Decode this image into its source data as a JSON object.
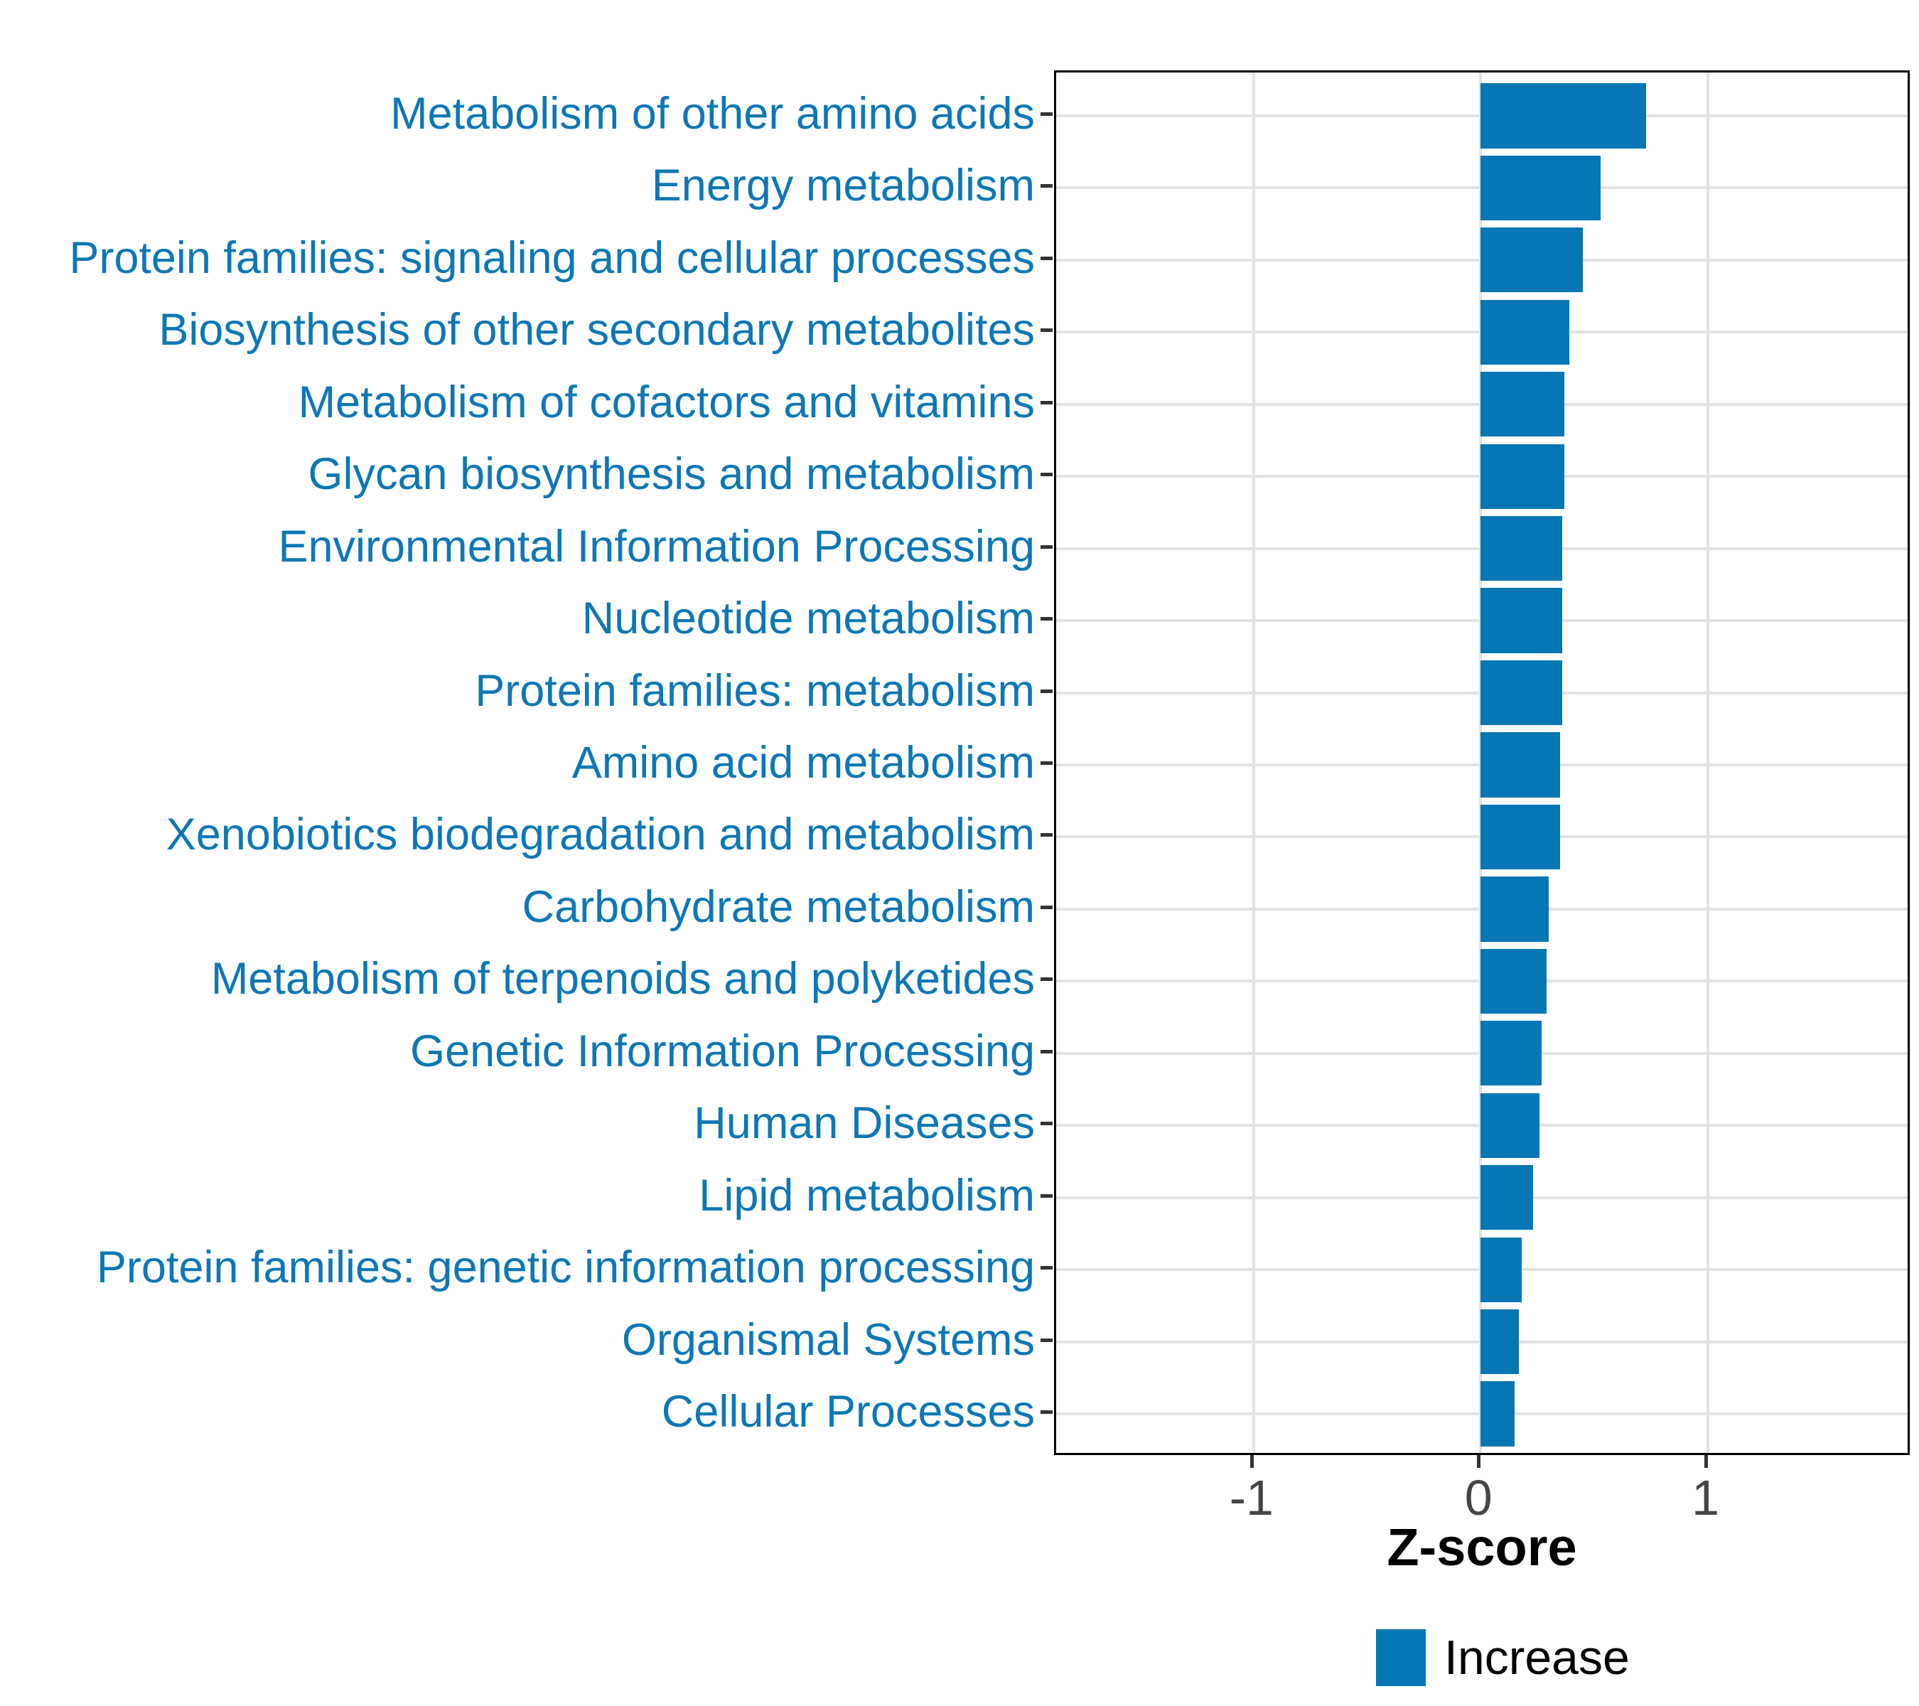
{
  "chart_data": {
    "type": "bar",
    "orientation": "horizontal",
    "title": "",
    "xlabel": "Z-score",
    "ylabel": "",
    "categories": [
      "Metabolism of other amino acids",
      "Energy metabolism",
      "Protein families: signaling and cellular processes",
      "Biosynthesis of other secondary metabolites",
      "Metabolism of cofactors and vitamins",
      "Glycan biosynthesis and metabolism",
      "Environmental Information Processing",
      "Nucleotide metabolism",
      "Protein families: metabolism",
      "Amino acid metabolism",
      "Xenobiotics biodegradation and metabolism",
      "Carbohydrate metabolism",
      "Metabolism of terpenoids and polyketides",
      "Genetic Information Processing",
      "Human Diseases",
      "Lipid metabolism",
      "Protein families: genetic information processing",
      "Organismal Systems",
      "Cellular Processes"
    ],
    "series": [
      {
        "name": "Increase",
        "values": [
          0.73,
          0.53,
          0.45,
          0.39,
          0.37,
          0.37,
          0.36,
          0.36,
          0.36,
          0.35,
          0.35,
          0.3,
          0.29,
          0.27,
          0.26,
          0.23,
          0.18,
          0.17,
          0.15
        ]
      }
    ],
    "xlim": [
      -1.87,
      1.9
    ],
    "xticks": [
      "-1",
      "0",
      "1"
    ],
    "xtick_values": [
      -1,
      0,
      1
    ],
    "grid": "major-only",
    "gridlines": "at each category center (horizontal) and at each x tick (vertical)",
    "legend": {
      "position": "bottom",
      "entries": [
        {
          "label": "Increase",
          "color": "#0776b4"
        }
      ]
    },
    "colors": {
      "bar_fill": "#0776b4",
      "category_label": "#0d77b5",
      "axis_tick_label": "#454545",
      "axis_title": "#000000",
      "gridline": "#e2e2e2",
      "panel_border": "#000000",
      "tick_mark": "#333333",
      "background": "#ffffff"
    }
  }
}
